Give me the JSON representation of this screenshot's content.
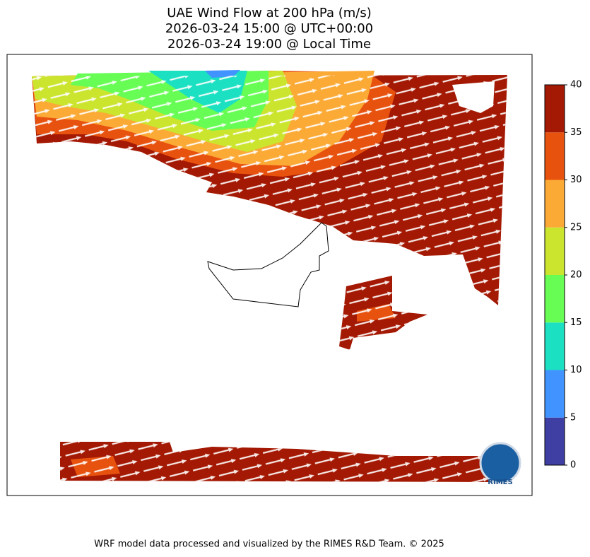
{
  "header": {
    "title": [
      "UAE Wind Flow at 200 hPa (m/s)",
      "2026-03-24 15:00 @ UTC+00:00",
      "2026-03-24 19:00 @ Local Time"
    ]
  },
  "colorbar": {
    "lim": [
      0,
      40
    ],
    "ticks": [
      0,
      5,
      10,
      15,
      20,
      25,
      30,
      35,
      40
    ],
    "colors": [
      "#3f3fa3",
      "#4194ff",
      "#1ce0c2",
      "#67fd55",
      "#cbe52f",
      "#fbaa36",
      "#e8520f",
      "#a41903"
    ]
  },
  "logo": "RIMES",
  "footer": "WRF model data processed and visualized by the RIMES R&D Team. © 2025"
}
